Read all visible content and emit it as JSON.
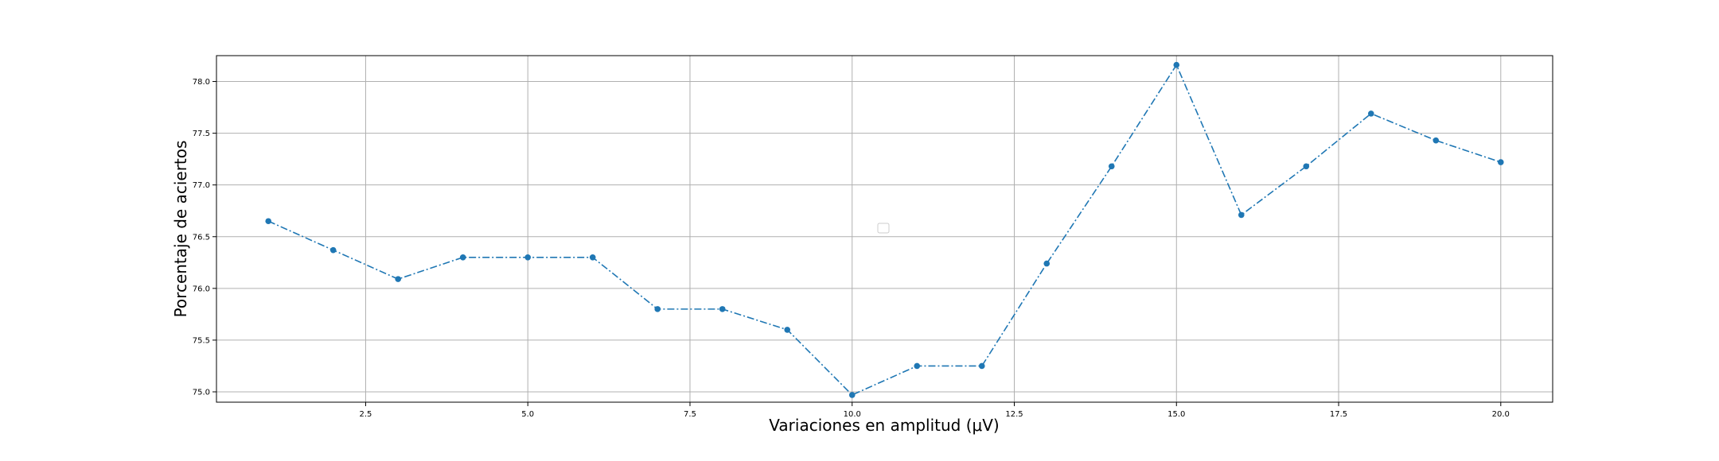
{
  "chart_data": {
    "type": "line",
    "title": "",
    "xlabel": "Variaciones en amplitud (μV)",
    "ylabel": "Porcentaje de aciertos",
    "xlim": [
      0.2,
      20.8
    ],
    "ylim": [
      74.9,
      78.25
    ],
    "x_ticks": [
      2.5,
      5.0,
      7.5,
      10.0,
      12.5,
      15.0,
      17.5,
      20.0
    ],
    "x_tick_labels": [
      "2.5",
      "5.0",
      "7.5",
      "10.0",
      "12.5",
      "15.0",
      "17.5",
      "20.0"
    ],
    "y_ticks": [
      75.0,
      75.5,
      76.0,
      76.5,
      77.0,
      77.5,
      78.0
    ],
    "y_tick_labels": [
      "75.0",
      "75.5",
      "76.0",
      "76.5",
      "77.0",
      "77.5",
      "78.0"
    ],
    "grid": true,
    "legend": "empty box, center",
    "series": [
      {
        "color": "#1f77b4",
        "linestyle": "dash-dot",
        "marker": "circle",
        "x": [
          1,
          2,
          3,
          4,
          5,
          6,
          7,
          8,
          9,
          10,
          11,
          12,
          13,
          14,
          15,
          16,
          17,
          18,
          19,
          20
        ],
        "values": [
          76.65,
          76.37,
          76.09,
          76.3,
          76.3,
          76.3,
          75.8,
          75.8,
          75.6,
          74.97,
          75.25,
          75.25,
          76.24,
          77.18,
          78.16,
          76.71,
          77.18,
          77.69,
          77.43,
          77.22
        ]
      }
    ]
  }
}
